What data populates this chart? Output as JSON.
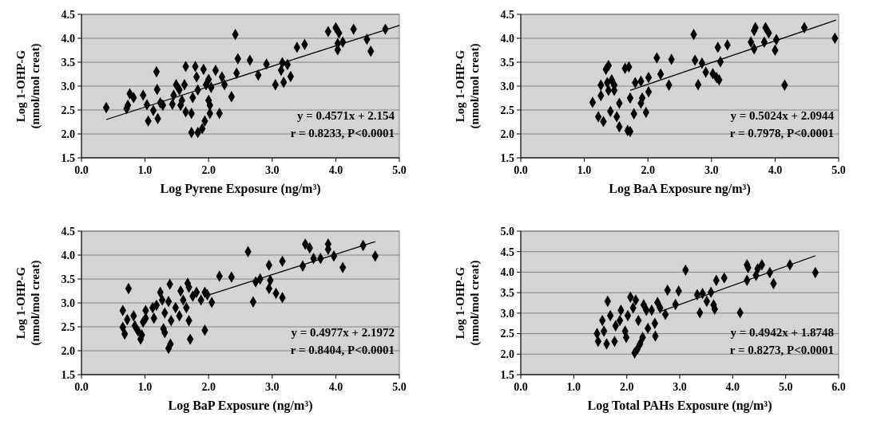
{
  "chart_data": [
    {
      "type": "scatter",
      "xlabel": "Log Pyrene Exposure (ng/m³)",
      "ylabel": "Log 1-OHP-G (nmol/mol creat)",
      "xlim": [
        0,
        5
      ],
      "ylim": [
        1.5,
        4.5
      ],
      "xticks": [
        {
          "value": 0,
          "label": "0.0"
        },
        {
          "value": 1,
          "label": "1.0"
        },
        {
          "value": 2,
          "label": "2.0"
        },
        {
          "value": 3,
          "label": "3.0"
        },
        {
          "value": 4,
          "label": "4.0"
        },
        {
          "value": 5,
          "label": "5.0"
        }
      ],
      "yticks": [
        1.5,
        {
          "value": 2,
          "label": "2.0"
        },
        2.5,
        {
          "value": 3,
          "label": "3.0"
        },
        3.5,
        {
          "value": 4,
          "label": "4.0"
        },
        4.5
      ],
      "grid": "y",
      "annotations": [
        "y = 0.4571x + 2.154",
        "r = 0.8233, P<0.0001"
      ],
      "series": [
        {
          "marker": "diamond",
          "color": "#000000",
          "x": [
            0.39,
            0.71,
            0.73,
            0.76,
            0.82,
            0.97,
            1.03,
            1.05,
            1.18,
            1.19,
            1.13,
            1.2,
            1.24,
            1.28,
            1.43,
            1.45,
            1.49,
            1.54,
            1.64,
            1.62,
            1.58,
            1.56,
            1.64,
            1.73,
            1.73,
            1.83,
            1.9,
            1.94,
            1.79,
            1.92,
            1.81,
            1.75,
            1.83,
            1.96,
            2.0,
            2.04,
            2.11,
            2.21,
            2.25,
            2.0,
            2.02,
            2.02,
            2.17,
            2.36,
            2.42,
            2.44,
            2.46,
            2.65,
            2.78,
            2.91,
            3.05,
            3.14,
            3.16,
            3.18,
            3.24,
            3.29,
            3.39,
            3.51,
            3.88,
            4.0,
            4.05,
            4.03,
            4.03,
            4.11,
            4.28,
            4.49,
            4.55,
            4.78
          ],
          "values": [
            2.55,
            2.53,
            2.6,
            2.84,
            2.76,
            2.81,
            2.61,
            2.27,
            3.3,
            2.93,
            2.49,
            2.32,
            2.65,
            2.6,
            2.62,
            2.81,
            3.03,
            2.92,
            3.41,
            3.03,
            2.7,
            2.6,
            2.46,
            2.43,
            2.03,
            2.03,
            2.11,
            2.27,
            3.41,
            3.35,
            3.19,
            2.76,
            2.92,
            3.03,
            3.14,
            2.97,
            3.33,
            3.19,
            3.03,
            2.7,
            2.6,
            2.43,
            2.43,
            2.78,
            4.08,
            3.27,
            3.57,
            3.54,
            3.23,
            3.46,
            3.03,
            3.33,
            3.49,
            3.08,
            3.45,
            3.2,
            3.81,
            3.87,
            4.14,
            4.22,
            4.11,
            3.76,
            3.89,
            3.92,
            4.19,
            3.98,
            3.73,
            4.19
          ]
        },
        {
          "type": "line",
          "marker": "none",
          "color": "#000000",
          "x": [
            0.39,
            5.0
          ],
          "values": [
            2.3,
            4.27
          ]
        }
      ]
    },
    {
      "type": "scatter",
      "xlabel": "Log BaA Exposure ng/m³)",
      "ylabel": "Log 1-OHP-G (nmol/mol creat)",
      "xlim": [
        0,
        5
      ],
      "ylim": [
        1.5,
        4.5
      ],
      "xticks": [
        {
          "value": 0,
          "label": "0.0"
        },
        {
          "value": 1,
          "label": "1.0"
        },
        {
          "value": 2,
          "label": "2.0"
        },
        {
          "value": 3,
          "label": "3.0"
        },
        {
          "value": 4,
          "label": "4.0"
        },
        {
          "value": 5,
          "label": "5.0"
        }
      ],
      "yticks": [
        1.5,
        {
          "value": 2,
          "label": "2.0"
        },
        2.5,
        {
          "value": 3,
          "label": "3.0"
        },
        3.5,
        {
          "value": 4,
          "label": "4.0"
        },
        4.5
      ],
      "grid": "y",
      "annotations": [
        "y = 0.5024x + 2.0944",
        "r = 0.7978, P<0.0001"
      ],
      "series": [
        {
          "marker": "diamond",
          "color": "#000000",
          "x": [
            1.13,
            1.22,
            1.3,
            1.34,
            1.38,
            1.36,
            1.26,
            1.38,
            1.47,
            1.41,
            1.51,
            1.55,
            1.68,
            1.72,
            1.64,
            1.7,
            1.55,
            1.72,
            1.8,
            1.89,
            2.01,
            1.78,
            1.89,
            1.91,
            1.97,
            2.01,
            2.14,
            2.2,
            2.33,
            2.37,
            1.47,
            1.43,
            1.26,
            2.72,
            2.74,
            2.79,
            2.85,
            2.91,
            3.02,
            3.08,
            3.12,
            3.1,
            3.14,
            3.25,
            3.62,
            3.67,
            3.67,
            3.69,
            3.85,
            3.9,
            3.83,
            4.02,
            4.0,
            4.15,
            4.46,
            4.94
          ],
          "values": [
            2.66,
            2.36,
            2.26,
            3.35,
            3.43,
            3.07,
            2.8,
            2.91,
            3.02,
            2.47,
            2.36,
            2.15,
            2.07,
            2.05,
            3.37,
            3.4,
            2.64,
            2.75,
            3.07,
            3.1,
            3.18,
            2.42,
            2.64,
            2.75,
            2.45,
            2.88,
            3.59,
            3.25,
            3.02,
            3.56,
            2.91,
            3.13,
            3.02,
            4.08,
            3.54,
            3.03,
            3.48,
            3.29,
            3.26,
            3.18,
            3.13,
            3.81,
            3.51,
            3.86,
            3.92,
            3.78,
            4.16,
            4.22,
            4.22,
            4.11,
            3.92,
            3.97,
            3.75,
            3.02,
            4.22,
            4.0
          ]
        },
        {
          "type": "line",
          "marker": "none",
          "color": "#000000",
          "x": [
            1.72,
            4.96
          ],
          "values": [
            2.91,
            4.38
          ]
        }
      ]
    },
    {
      "type": "scatter",
      "xlabel": "Log BaP Exposure (ng/m³)",
      "ylabel": "Log 1-OHP-G (nmol/mol creat)",
      "xlim": [
        0,
        5
      ],
      "ylim": [
        1.5,
        4.5
      ],
      "xticks": [
        {
          "value": 0,
          "label": "0.0"
        },
        {
          "value": 1,
          "label": "1.0"
        },
        {
          "value": 2,
          "label": "2.0"
        },
        {
          "value": 3,
          "label": "3.0"
        },
        {
          "value": 4,
          "label": "4.0"
        },
        {
          "value": 5,
          "label": "5.0"
        }
      ],
      "yticks": [
        1.5,
        {
          "value": 2,
          "label": "2.0"
        },
        2.5,
        {
          "value": 3,
          "label": "3.0"
        },
        3.5,
        {
          "value": 4,
          "label": "4.0"
        },
        4.5
      ],
      "grid": "y",
      "annotations": [
        "y = 0.4977x + 2.1972",
        "r = 0.8404, P<0.0001"
      ],
      "series": [
        {
          "marker": "diamond",
          "color": "#000000",
          "x": [
            0.65,
            0.65,
            0.68,
            0.74,
            0.72,
            0.82,
            0.84,
            0.89,
            0.93,
            0.95,
            0.97,
            1.01,
            1.01,
            1.12,
            1.14,
            1.18,
            1.24,
            1.27,
            1.31,
            1.29,
            1.31,
            1.39,
            1.37,
            1.41,
            1.37,
            1.4,
            1.48,
            1.54,
            1.56,
            1.6,
            1.67,
            1.69,
            1.65,
            1.69,
            1.71,
            1.75,
            1.81,
            1.88,
            1.94,
            1.98,
            2.05,
            1.94,
            2.17,
            2.36,
            2.62,
            2.7,
            2.74,
            2.81,
            2.95,
            2.97,
            2.95,
            3.06,
            3.16,
            3.16,
            3.48,
            3.52,
            3.59,
            3.65,
            3.76,
            3.88,
            3.88,
            3.97,
            4.11,
            4.43,
            4.62
          ],
          "values": [
            2.84,
            2.49,
            2.35,
            3.3,
            2.65,
            2.73,
            2.52,
            2.41,
            2.24,
            2.33,
            2.6,
            2.68,
            2.84,
            2.9,
            2.68,
            2.95,
            3.22,
            3.06,
            2.79,
            2.46,
            2.38,
            3.39,
            3.03,
            2.63,
            2.05,
            2.14,
            2.9,
            2.73,
            3.25,
            3.06,
            3.41,
            3.33,
            2.9,
            2.63,
            2.24,
            3.14,
            3.22,
            3.06,
            3.22,
            3.17,
            3.01,
            2.43,
            3.56,
            3.54,
            4.07,
            3.02,
            3.44,
            3.5,
            3.79,
            3.47,
            3.3,
            3.2,
            3.87,
            3.11,
            3.77,
            4.23,
            4.15,
            3.93,
            3.93,
            4.23,
            4.12,
            3.98,
            3.74,
            4.2,
            3.98
          ]
        },
        {
          "type": "line",
          "marker": "none",
          "color": "#000000",
          "x": [
            1.94,
            4.62
          ],
          "values": [
            3.14,
            4.28
          ]
        }
      ]
    },
    {
      "type": "scatter",
      "xlabel": "Log Total PAHs Exposure (ng/m³)",
      "ylabel": "Log 1-OHP-G (nmol/mol creat)",
      "xlim": [
        0,
        6
      ],
      "ylim": [
        1.5,
        5
      ],
      "xticks": [
        {
          "value": 0,
          "label": "0.0"
        },
        {
          "value": 1,
          "label": "1.0"
        },
        {
          "value": 2,
          "label": "2.0"
        },
        {
          "value": 3,
          "label": "3.0"
        },
        {
          "value": 4,
          "label": "4.0"
        },
        {
          "value": 5,
          "label": "5.0"
        },
        {
          "value": 6,
          "label": "6.0"
        }
      ],
      "yticks": [
        1.5,
        {
          "value": 2,
          "label": "2.0"
        },
        2.5,
        {
          "value": 3,
          "label": "3.0"
        },
        3.5,
        {
          "value": 4,
          "label": "4.0"
        },
        4.5,
        {
          "value": 5,
          "label": "5.0"
        }
      ],
      "grid": "y",
      "annotations": [
        "y = 0.4942x + 1.8748",
        "r = 0.8273, P<0.0001"
      ],
      "series": [
        {
          "marker": "diamond",
          "color": "#000000",
          "x": [
            1.44,
            1.46,
            1.54,
            1.62,
            1.57,
            1.64,
            1.69,
            1.77,
            1.79,
            1.87,
            1.89,
            1.97,
            1.99,
            2.02,
            2.07,
            2.12,
            2.17,
            2.22,
            2.15,
            2.2,
            2.25,
            2.3,
            2.32,
            2.37,
            2.4,
            2.47,
            2.53,
            2.54,
            2.58,
            2.63,
            2.73,
            2.77,
            2.92,
            2.98,
            3.11,
            3.33,
            3.38,
            3.43,
            3.51,
            3.59,
            3.64,
            3.66,
            3.69,
            3.84,
            4.14,
            4.27,
            4.27,
            4.29,
            4.44,
            4.47,
            4.55,
            4.7,
            4.77,
            5.08,
            5.56
          ],
          "values": [
            2.5,
            2.31,
            2.82,
            2.25,
            2.56,
            3.29,
            2.94,
            2.31,
            2.69,
            2.82,
            3.07,
            2.56,
            2.41,
            2.94,
            3.39,
            3.13,
            3.32,
            2.82,
            2.03,
            2.12,
            2.25,
            2.41,
            3.2,
            3.07,
            2.63,
            3.07,
            2.75,
            2.44,
            3.26,
            3.13,
            2.97,
            3.56,
            3.21,
            3.54,
            4.05,
            3.45,
            3.01,
            3.48,
            3.29,
            3.51,
            3.2,
            3.1,
            3.8,
            3.86,
            3.01,
            3.8,
            4.18,
            4.11,
            3.92,
            4.08,
            4.18,
            3.99,
            3.72,
            4.18,
            3.99
          ]
        },
        {
          "type": "line",
          "marker": "none",
          "color": "#000000",
          "x": [
            2.63,
            5.56
          ],
          "values": [
            3.04,
            4.4
          ]
        }
      ]
    }
  ]
}
